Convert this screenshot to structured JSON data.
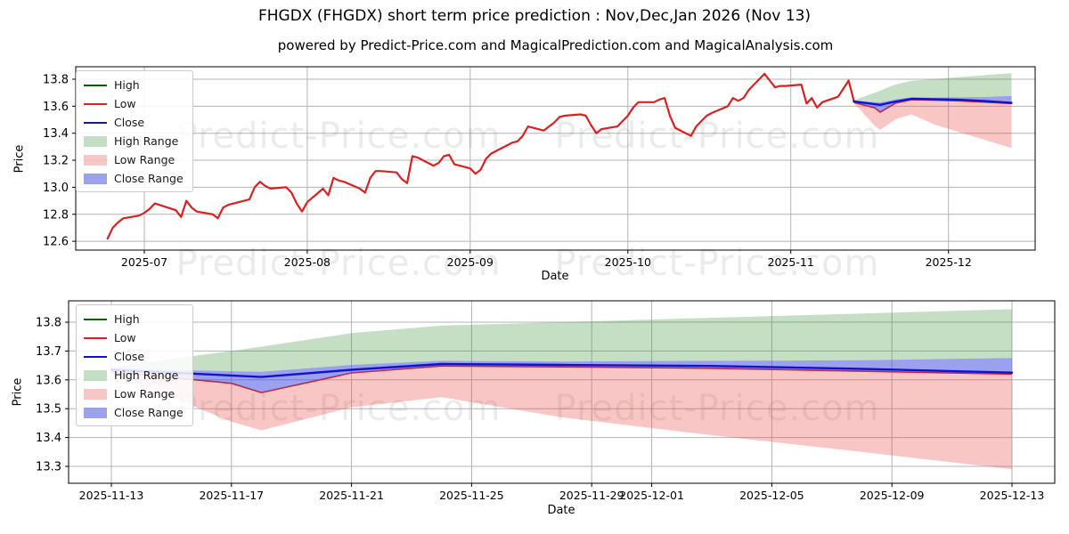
{
  "title": "FHGDX (FHGDX) short term price prediction : Nov,Dec,Jan 2026 (Nov 13)",
  "subtitle": "powered by Predict-Price.com and MagicalPrediction.com and MagicalAnalysis.com",
  "watermark": {
    "text": "Predict-Price.com"
  },
  "colors": {
    "high": "#006400",
    "low": "#d62222",
    "close": "#1212cc",
    "high_range": "rgba(60,150,60,0.30)",
    "low_range": "rgba(235,65,65,0.30)",
    "close_range": "rgba(65,75,225,0.52)",
    "grid": "#b3b3b3",
    "spine": "#000000",
    "text": "#000000"
  },
  "legend": {
    "items": [
      {
        "label": "High",
        "swatch": "line",
        "color_key": "high"
      },
      {
        "label": "Low",
        "swatch": "line",
        "color_key": "low"
      },
      {
        "label": "Close",
        "swatch": "line",
        "color_key": "close"
      },
      {
        "label": "High Range",
        "swatch": "patch",
        "color_key": "high_range"
      },
      {
        "label": "Low Range",
        "swatch": "patch",
        "color_key": "low_range"
      },
      {
        "label": "Close Range",
        "swatch": "patch",
        "color_key": "close_range"
      }
    ]
  },
  "charts": [
    {
      "name": "price-history-with-forecast",
      "ylabel": "Price",
      "xlabel": "Date",
      "y_ticks": [
        "13.8",
        "13.6",
        "13.4",
        "13.2",
        "13.0",
        "12.8",
        "12.6"
      ],
      "x_ticks": [
        {
          "label": "2025-07",
          "date": "2025-07-01"
        },
        {
          "label": "2025-08",
          "date": "2025-08-01"
        },
        {
          "label": "2025-09",
          "date": "2025-09-01"
        },
        {
          "label": "2025-10",
          "date": "2025-10-01"
        },
        {
          "label": "2025-11",
          "date": "2025-11-01"
        },
        {
          "label": "2025-12",
          "date": "2025-12-01"
        }
      ]
    },
    {
      "name": "forecast-detail",
      "ylabel": "Price",
      "xlabel": "Date",
      "y_ticks": [
        "13.8",
        "13.7",
        "13.6",
        "13.5",
        "13.4",
        "13.3"
      ],
      "x_ticks": [
        {
          "label": "2025-11-13",
          "date": "2025-11-13"
        },
        {
          "label": "2025-11-17",
          "date": "2025-11-17"
        },
        {
          "label": "2025-11-21",
          "date": "2025-11-21"
        },
        {
          "label": "2025-11-25",
          "date": "2025-11-25"
        },
        {
          "label": "2025-11-29",
          "date": "2025-11-29"
        },
        {
          "label": "2025-12-01",
          "date": "2025-12-01"
        },
        {
          "label": "2025-12-05",
          "date": "2025-12-05"
        },
        {
          "label": "2025-12-09",
          "date": "2025-12-09"
        },
        {
          "label": "2025-12-13",
          "date": "2025-12-13"
        }
      ]
    }
  ],
  "chart_data": {
    "type": "line",
    "title": "FHGDX (FHGDX) short term price prediction : Nov,Dec,Jan 2026 (Nov 13)",
    "ylabel": "Price",
    "xlabel": "Date",
    "grid": true,
    "legend_position": "upper-left",
    "top_panel": {
      "ylim": [
        12.54,
        13.89
      ],
      "x_range": [
        "2025-06-21",
        "2025-12-17"
      ]
    },
    "bottom_panel": {
      "ylim": [
        13.24,
        13.87
      ],
      "x_range": [
        "2025-11-12",
        "2025-12-14"
      ]
    },
    "history": {
      "series_name": "Low",
      "dates": [
        "2025-06-24",
        "2025-06-25",
        "2025-06-26",
        "2025-06-27",
        "2025-06-30",
        "2025-07-01",
        "2025-07-02",
        "2025-07-03",
        "2025-07-07",
        "2025-07-08",
        "2025-07-09",
        "2025-07-10",
        "2025-07-11",
        "2025-07-14",
        "2025-07-15",
        "2025-07-16",
        "2025-07-17",
        "2025-07-18",
        "2025-07-21",
        "2025-07-22",
        "2025-07-23",
        "2025-07-24",
        "2025-07-25",
        "2025-07-28",
        "2025-07-29",
        "2025-07-30",
        "2025-07-31",
        "2025-08-01",
        "2025-08-04",
        "2025-08-05",
        "2025-08-06",
        "2025-08-07",
        "2025-08-08",
        "2025-08-11",
        "2025-08-12",
        "2025-08-13",
        "2025-08-14",
        "2025-08-15",
        "2025-08-18",
        "2025-08-19",
        "2025-08-20",
        "2025-08-21",
        "2025-08-22",
        "2025-08-25",
        "2025-08-26",
        "2025-08-27",
        "2025-08-28",
        "2025-08-29",
        "2025-09-01",
        "2025-09-02",
        "2025-09-03",
        "2025-09-04",
        "2025-09-05",
        "2025-09-08",
        "2025-09-09",
        "2025-09-10",
        "2025-09-11",
        "2025-09-12",
        "2025-09-15",
        "2025-09-16",
        "2025-09-17",
        "2025-09-18",
        "2025-09-19",
        "2025-09-22",
        "2025-09-23",
        "2025-09-24",
        "2025-09-25",
        "2025-09-26",
        "2025-09-29",
        "2025-09-30",
        "2025-10-01",
        "2025-10-02",
        "2025-10-03",
        "2025-10-06",
        "2025-10-07",
        "2025-10-08",
        "2025-10-09",
        "2025-10-10",
        "2025-10-13",
        "2025-10-14",
        "2025-10-15",
        "2025-10-16",
        "2025-10-17",
        "2025-10-20",
        "2025-10-21",
        "2025-10-22",
        "2025-10-23",
        "2025-10-24",
        "2025-10-27",
        "2025-10-28",
        "2025-10-29",
        "2025-10-30",
        "2025-10-31",
        "2025-11-03",
        "2025-11-04",
        "2025-11-05",
        "2025-11-06",
        "2025-11-07",
        "2025-11-10",
        "2025-11-11",
        "2025-11-12",
        "2025-11-13"
      ],
      "values": [
        12.62,
        12.7,
        12.74,
        12.77,
        12.79,
        12.81,
        12.84,
        12.88,
        12.83,
        12.78,
        12.9,
        12.85,
        12.82,
        12.8,
        12.77,
        12.85,
        12.87,
        12.88,
        12.91,
        13.0,
        13.04,
        13.01,
        12.99,
        13.0,
        12.96,
        12.88,
        12.82,
        12.89,
        12.99,
        12.94,
        13.07,
        13.05,
        13.04,
        12.99,
        12.96,
        13.07,
        13.12,
        13.12,
        13.11,
        13.06,
        13.03,
        13.23,
        13.22,
        13.16,
        13.18,
        13.23,
        13.24,
        13.17,
        13.14,
        13.1,
        13.13,
        13.21,
        13.25,
        13.31,
        13.33,
        13.34,
        13.38,
        13.45,
        13.42,
        13.45,
        13.48,
        13.52,
        13.53,
        13.54,
        13.53,
        13.46,
        13.4,
        13.43,
        13.45,
        13.49,
        13.53,
        13.59,
        13.63,
        13.63,
        13.65,
        13.66,
        13.53,
        13.44,
        13.38,
        13.45,
        13.49,
        13.53,
        13.55,
        13.6,
        13.66,
        13.64,
        13.66,
        13.72,
        13.84,
        13.79,
        13.74,
        13.75,
        13.75,
        13.76,
        13.62,
        13.66,
        13.59,
        13.63,
        13.67,
        13.73,
        13.79,
        13.64
      ]
    },
    "forecast": {
      "dates": [
        "2025-11-13",
        "2025-11-17",
        "2025-11-18",
        "2025-11-21",
        "2025-11-24",
        "2025-11-28",
        "2025-12-03",
        "2025-12-08",
        "2025-12-13"
      ],
      "close": [
        13.635,
        13.615,
        13.61,
        13.635,
        13.655,
        13.652,
        13.648,
        13.638,
        13.625
      ],
      "close_upper": [
        13.64,
        13.63,
        13.628,
        13.652,
        13.666,
        13.664,
        13.666,
        13.668,
        13.676
      ],
      "close_lower": [
        13.628,
        13.588,
        13.556,
        13.624,
        13.648,
        13.645,
        13.64,
        13.63,
        13.62
      ],
      "high_upper": [
        13.645,
        13.7,
        13.715,
        13.762,
        13.788,
        13.8,
        13.815,
        13.83,
        13.845
      ],
      "low_lower": [
        13.625,
        13.455,
        13.425,
        13.505,
        13.54,
        13.47,
        13.408,
        13.35,
        13.29
      ]
    }
  }
}
